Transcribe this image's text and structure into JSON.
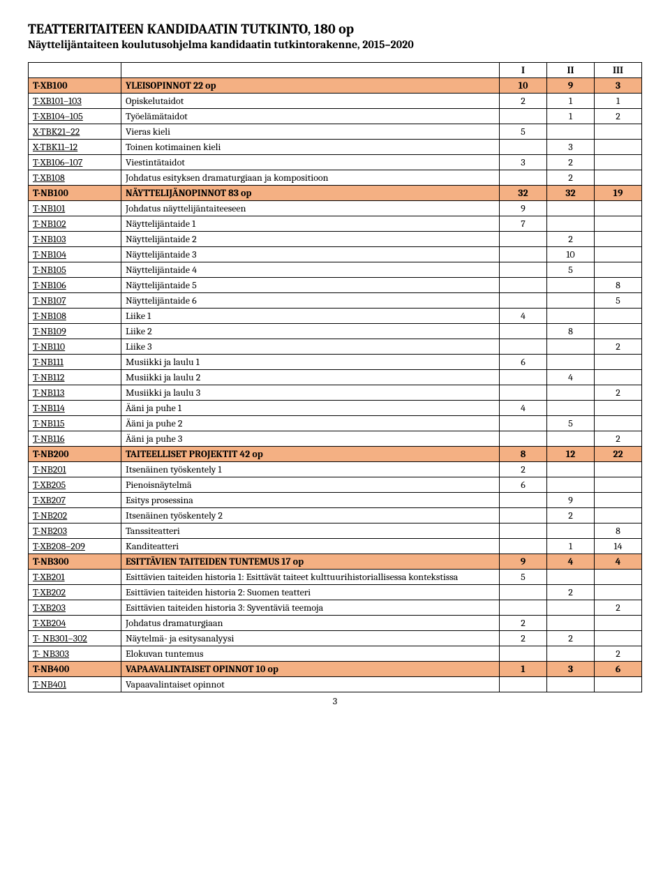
{
  "title": "TEATTERITAITEEN KANDIDAATIN TUTKINTO, 180 op",
  "subtitle": "Näyttelijäntaiteen koulutusohjelma kandidaatin tutkintorakenne, 2015–2020",
  "headers": {
    "c1": "I",
    "c2": "II",
    "c3": "III"
  },
  "page_number": "3",
  "colors": {
    "section_bg": "#f4b083",
    "border": "#000000",
    "text": "#000000",
    "bg": "#ffffff"
  },
  "rows": [
    {
      "code": "T-XB100",
      "desc": "YLEISOPINNOT 22 op",
      "v1": "10",
      "v2": "9",
      "v3": "3",
      "section": true,
      "link": false
    },
    {
      "code": "T-XB101–103",
      "desc": "Opiskelutaidot",
      "v1": "2",
      "v2": "1",
      "v3": "1",
      "section": false,
      "link": true
    },
    {
      "code": "T-XB104–105",
      "desc": "Työelämätaidot",
      "v1": "",
      "v2": "1",
      "v3": "2",
      "section": false,
      "link": true
    },
    {
      "code": "X-TBK21–22",
      "desc": "Vieras kieli",
      "v1": "5",
      "v2": "",
      "v3": "",
      "section": false,
      "link": true
    },
    {
      "code": "X-TBK11–12",
      "desc": "Toinen kotimainen kieli",
      "v1": "",
      "v2": "3",
      "v3": "",
      "section": false,
      "link": true
    },
    {
      "code": "T-XB106–107",
      "desc": "Viestintätaidot",
      "v1": "3",
      "v2": "2",
      "v3": "",
      "section": false,
      "link": true
    },
    {
      "code": "T-XB108",
      "desc": "Johdatus esityksen dramaturgiaan ja kompositioon",
      "v1": "",
      "v2": "2",
      "v3": "",
      "section": false,
      "link": true
    },
    {
      "code": "T-NB100",
      "desc": "NÄYTTELIJÄNOPINNOT 83 op",
      "v1": "32",
      "v2": "32",
      "v3": "19",
      "section": true,
      "link": false
    },
    {
      "code": "T-NB101",
      "desc": "Johdatus näyttelijäntaiteeseen",
      "v1": "9",
      "v2": "",
      "v3": "",
      "section": false,
      "link": true
    },
    {
      "code": "T-NB102",
      "desc": "Näyttelijäntaide 1",
      "v1": "7",
      "v2": "",
      "v3": "",
      "section": false,
      "link": true
    },
    {
      "code": "T-NB103",
      "desc": "Näyttelijäntaide 2",
      "v1": "",
      "v2": "2",
      "v3": "",
      "section": false,
      "link": true
    },
    {
      "code": "T-NB104",
      "desc": "Näyttelijäntaide 3",
      "v1": "",
      "v2": "10",
      "v3": "",
      "section": false,
      "link": true
    },
    {
      "code": "T-NB105",
      "desc": "Näyttelijäntaide 4",
      "v1": "",
      "v2": "5",
      "v3": "",
      "section": false,
      "link": true
    },
    {
      "code": "T-NB106",
      "desc": "Näyttelijäntaide 5",
      "v1": "",
      "v2": "",
      "v3": "8",
      "section": false,
      "link": true
    },
    {
      "code": "T-NB107",
      "desc": "Näyttelijäntaide 6",
      "v1": "",
      "v2": "",
      "v3": "5",
      "section": false,
      "link": true
    },
    {
      "code": "T-NB108",
      "desc": "Liike 1",
      "v1": "4",
      "v2": "",
      "v3": "",
      "section": false,
      "link": true
    },
    {
      "code": "T-NB109",
      "desc": "Liike 2",
      "v1": "",
      "v2": "8",
      "v3": "",
      "section": false,
      "link": true
    },
    {
      "code": "T-NB110",
      "desc": "Liike 3",
      "v1": "",
      "v2": "",
      "v3": "2",
      "section": false,
      "link": true
    },
    {
      "code": "T-NB111",
      "desc": "Musiikki ja laulu 1",
      "v1": "6",
      "v2": "",
      "v3": "",
      "section": false,
      "link": true
    },
    {
      "code": "T-NB112",
      "desc": "Musiikki ja laulu 2",
      "v1": "",
      "v2": "4",
      "v3": "",
      "section": false,
      "link": true
    },
    {
      "code": "T-NB113",
      "desc": "Musiikki ja laulu 3",
      "v1": "",
      "v2": "",
      "v3": "2",
      "section": false,
      "link": true
    },
    {
      "code": "T-NB114",
      "desc": "Ääni ja puhe 1",
      "v1": "4",
      "v2": "",
      "v3": "",
      "section": false,
      "link": true
    },
    {
      "code": "T-NB115",
      "desc": "Ääni ja puhe 2",
      "v1": "",
      "v2": "5",
      "v3": "",
      "section": false,
      "link": true
    },
    {
      "code": "T-NB116",
      "desc": "Ääni ja puhe 3",
      "v1": "",
      "v2": "",
      "v3": "2",
      "section": false,
      "link": true
    },
    {
      "code": "T-NB200",
      "desc": "TAITEELLISET PROJEKTIT 42 op",
      "v1": "8",
      "v2": "12",
      "v3": "22",
      "section": true,
      "link": false
    },
    {
      "code": "T-NB201",
      "desc": "Itsenäinen työskentely 1",
      "v1": "2",
      "v2": "",
      "v3": "",
      "section": false,
      "link": true
    },
    {
      "code": "T-XB205",
      "desc": "Pienoisnäytelmä",
      "v1": "6",
      "v2": "",
      "v3": "",
      "section": false,
      "link": true
    },
    {
      "code": "T-XB207",
      "desc": "Esitys prosessina",
      "v1": "",
      "v2": "9",
      "v3": "",
      "section": false,
      "link": true
    },
    {
      "code": "T-NB202",
      "desc": "Itsenäinen työskentely 2",
      "v1": "",
      "v2": "2",
      "v3": "",
      "section": false,
      "link": true
    },
    {
      "code": "T-NB203",
      "desc": "Tanssiteatteri",
      "v1": "",
      "v2": "",
      "v3": "8",
      "section": false,
      "link": true
    },
    {
      "code": "T-XB208–209",
      "desc": "Kanditeatteri",
      "v1": "",
      "v2": "1",
      "v3": "14",
      "section": false,
      "link": true
    },
    {
      "code": "T-NB300",
      "desc": "ESITTÄVIEN TAITEIDEN TUNTEMUS 17 op",
      "v1": "9",
      "v2": "4",
      "v3": "4",
      "section": true,
      "link": false
    },
    {
      "code": "T-XB201",
      "desc": "Esittävien taiteiden historia 1: Esittävät taiteet kulttuurihistoriallisessa kontekstissa",
      "v1": "5",
      "v2": "",
      "v3": "",
      "section": false,
      "link": true
    },
    {
      "code": "T-XB202",
      "desc": "Esittävien taiteiden historia 2: Suomen teatteri",
      "v1": "",
      "v2": "2",
      "v3": "",
      "section": false,
      "link": true
    },
    {
      "code": "T-XB203",
      "desc": "Esittävien taiteiden historia 3: Syventäviä teemoja",
      "v1": "",
      "v2": "",
      "v3": "2",
      "section": false,
      "link": true
    },
    {
      "code": "T-XB204",
      "desc": "Johdatus dramaturgiaan",
      "v1": "2",
      "v2": "",
      "v3": "",
      "section": false,
      "link": true
    },
    {
      "code": "T- NB301–302",
      "desc": "Näytelmä- ja esitysanalyysi",
      "v1": "2",
      "v2": "2",
      "v3": "",
      "section": false,
      "link": true
    },
    {
      "code": "T- NB303",
      "desc": "Elokuvan tuntemus",
      "v1": "",
      "v2": "",
      "v3": "2",
      "section": false,
      "link": true
    },
    {
      "code": "T-NB400",
      "desc": "VAPAAVALINTAISET OPINNOT 10 op",
      "v1": "1",
      "v2": "3",
      "v3": "6",
      "section": true,
      "link": false
    },
    {
      "code": "T-NB401",
      "desc": "Vapaavalintaiset opinnot",
      "v1": "",
      "v2": "",
      "v3": "",
      "section": false,
      "link": true
    }
  ]
}
